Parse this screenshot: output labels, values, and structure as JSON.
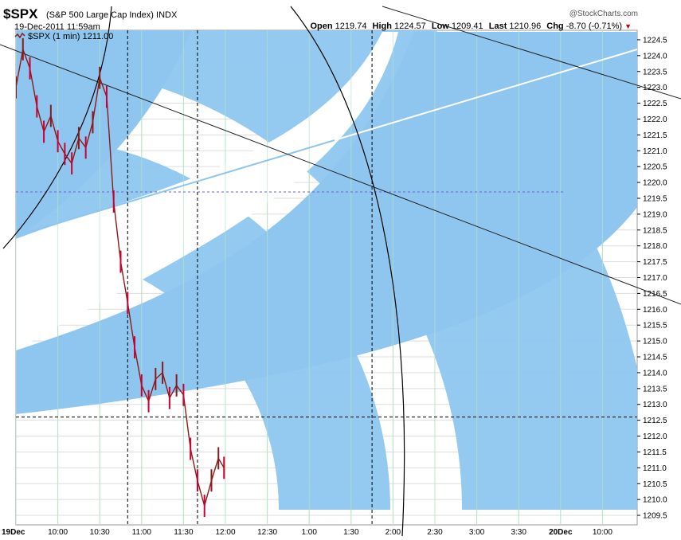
{
  "header": {
    "symbol": "$SPX",
    "full_name": "(S&P 500 Large Cap Index)",
    "exchange": "INDX",
    "date_time": "19-Dec-2011 11:59am",
    "legend_label": "$SPX (1 min) 1211.00",
    "logo_text": "@StockCharts.com",
    "open_label": "Open",
    "open_value": "1219.74",
    "high_label": "High",
    "high_value": "1224.57",
    "low_label": "Low",
    "low_value": "1209.41",
    "last_label": "Last",
    "last_value": "1210.96",
    "chg_label": "Chg",
    "chg_value": "-8.70 (-0.71%)"
  },
  "colors": {
    "fan_fill": "#8ec6ef",
    "grid_vertical": "#b8e4c8",
    "grid_horizontal": "#dddddd",
    "price_up": "#8b1a1a",
    "price_down": "#cc0033",
    "trend_light": "#8ec6ef",
    "trend_white": "#ffffff",
    "guide_blue": "#6666cc"
  },
  "chart_data": {
    "type": "line",
    "title": "$SPX (S&P 500 Large Cap Index) INDX",
    "series": [
      {
        "name": "$SPX (1 min)",
        "x": [
          "09:30",
          "09:35",
          "09:40",
          "09:45",
          "09:50",
          "09:55",
          "10:00",
          "10:05",
          "10:10",
          "10:15",
          "10:20",
          "10:25",
          "10:30",
          "10:35",
          "10:40",
          "10:45",
          "10:50",
          "10:55",
          "11:00",
          "11:05",
          "11:10",
          "11:15",
          "11:20",
          "11:25",
          "11:30",
          "11:35",
          "11:40",
          "11:45",
          "11:50",
          "11:55",
          "11:59"
        ],
        "values": [
          1223.0,
          1224.2,
          1223.6,
          1222.4,
          1221.6,
          1222.1,
          1221.3,
          1220.9,
          1220.6,
          1221.4,
          1221.1,
          1221.9,
          1223.3,
          1222.7,
          1219.4,
          1217.5,
          1216.2,
          1214.8,
          1213.6,
          1213.1,
          1213.8,
          1214.0,
          1213.2,
          1213.6,
          1213.3,
          1211.6,
          1210.6,
          1209.8,
          1210.6,
          1211.3,
          1211.0
        ]
      }
    ],
    "x_ticks": [
      "19Dec",
      "10:00",
      "10:30",
      "11:00",
      "11:30",
      "12:00",
      "12:30",
      "1:00",
      "1:30",
      "2:00",
      "2:30",
      "3:00",
      "3:30",
      "20Dec",
      "10:00"
    ],
    "y_ticks": [
      "1209.5",
      "1210.0",
      "1210.5",
      "1211.0",
      "1211.5",
      "1212.0",
      "1212.5",
      "1213.0",
      "1213.5",
      "1214.0",
      "1214.5",
      "1215.0",
      "1215.5",
      "1216.0",
      "1216.5",
      "1217.0",
      "1217.5",
      "1218.0",
      "1218.5",
      "1219.0",
      "1219.5",
      "1220.0",
      "1220.5",
      "1221.0",
      "1221.5",
      "1222.0",
      "1222.5",
      "1223.0",
      "1223.5",
      "1224.0",
      "1224.5"
    ],
    "ylim": [
      1209.2,
      1224.8
    ],
    "grid": true,
    "annotations": {
      "horizontal_levels": [
        1219.7,
        1212.6
      ],
      "vertical_times": [
        "10:50",
        "11:40",
        "1:45"
      ]
    }
  }
}
